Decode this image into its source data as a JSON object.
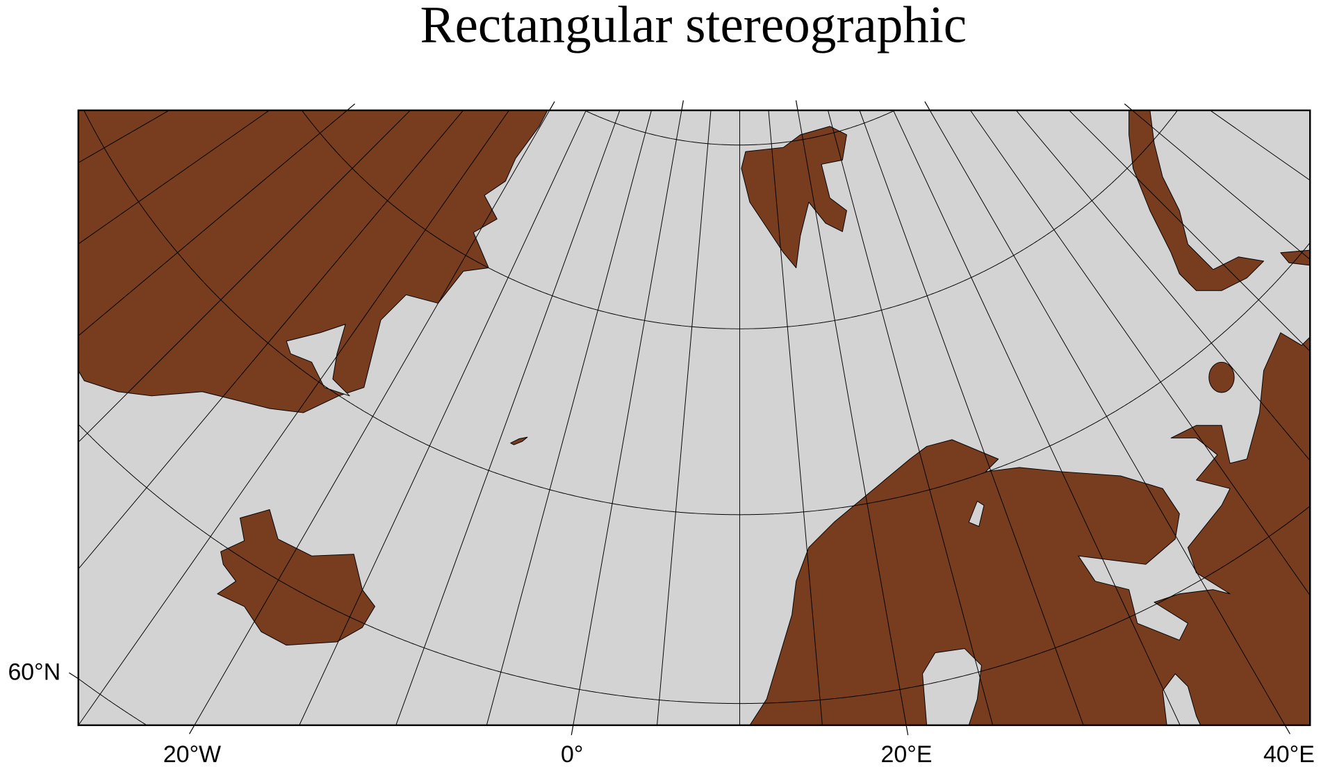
{
  "title": "Rectangular stereographic",
  "map": {
    "projection": "polar stereographic",
    "center_longitude": 10,
    "meridian_interval_deg": 5,
    "parallels_deg": [
      60,
      65,
      70,
      75,
      80,
      85
    ],
    "tick_interval_deg": 20,
    "colors": {
      "land": "#783c1e",
      "ocean": "#d3d3d3",
      "lines": "#000000"
    },
    "regions": [
      "Greenland",
      "Svalbard",
      "Iceland",
      "Jan Mayen",
      "Scandinavia",
      "Northwest Russia",
      "Novaya Zemlya",
      "Kolguyev"
    ]
  },
  "axes": {
    "bottom_labels": [
      "20°W",
      "0°",
      "20°E",
      "40°E"
    ],
    "left_labels": [
      "60°N"
    ]
  }
}
